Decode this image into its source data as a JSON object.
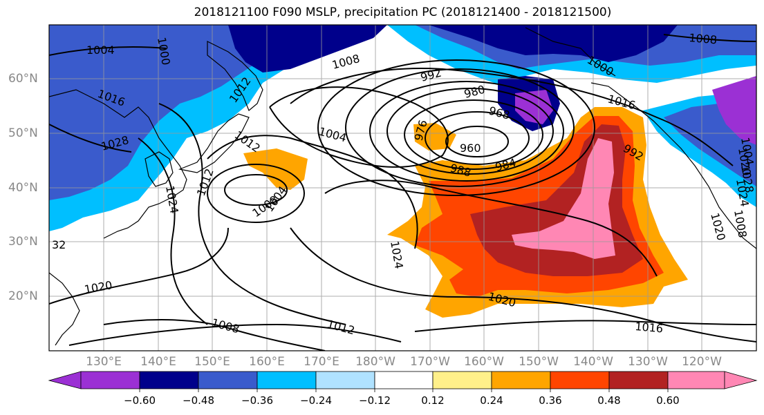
{
  "title": "2018121100 F090 MSLP, precipitation PC (2018121400 - 2018121500)",
  "lat_labels": [
    "60°N",
    "50°N",
    "40°N",
    "30°N",
    "20°N"
  ],
  "lon_labels": [
    "130°E",
    "140°E",
    "150°E",
    "160°E",
    "170°E",
    "180°W",
    "170°W",
    "160°W",
    "150°W",
    "140°W",
    "130°W",
    "120°W"
  ],
  "colorbar": {
    "labels": [
      "−0.60",
      "−0.48",
      "−0.36",
      "−0.24",
      "−0.12",
      "0.12",
      "0.24",
      "0.36",
      "0.48",
      "0.60"
    ],
    "colors": [
      "#9b30d4",
      "#00008b",
      "#3a5bcc",
      "#00bfff",
      "#b0e2ff",
      "#ffffff",
      "#fff08a",
      "#ffa500",
      "#ff4500",
      "#b22222",
      "#ff87b4"
    ]
  },
  "isobar_labels": [
    "1004",
    "1008",
    "1012",
    "1016",
    "1020",
    "1024",
    "1028",
    "992",
    "980",
    "968",
    "960",
    "976",
    "984",
    "988",
    "1000",
    "1008",
    "1012",
    "1016",
    "1020",
    "1024",
    "1004",
    "1008",
    "992",
    "1008",
    "1012",
    "1016",
    "1020",
    "1012",
    "1000",
    "1004",
    "1020",
    "32",
    "1008",
    "1024",
    "1028",
    "1004"
  ],
  "chart_data": {
    "type": "heatmap",
    "title": "2018121100 F090 MSLP, precipitation PC (2018121400 - 2018121500)",
    "levels": [
      -0.6,
      -0.48,
      -0.36,
      -0.24,
      -0.12,
      0.12,
      0.24,
      0.36,
      0.48,
      0.6
    ],
    "isobar_values_hPa": [
      960,
      968,
      976,
      980,
      984,
      988,
      992,
      1000,
      1004,
      1008,
      1012,
      1016,
      1020,
      1024,
      1028
    ]
  }
}
